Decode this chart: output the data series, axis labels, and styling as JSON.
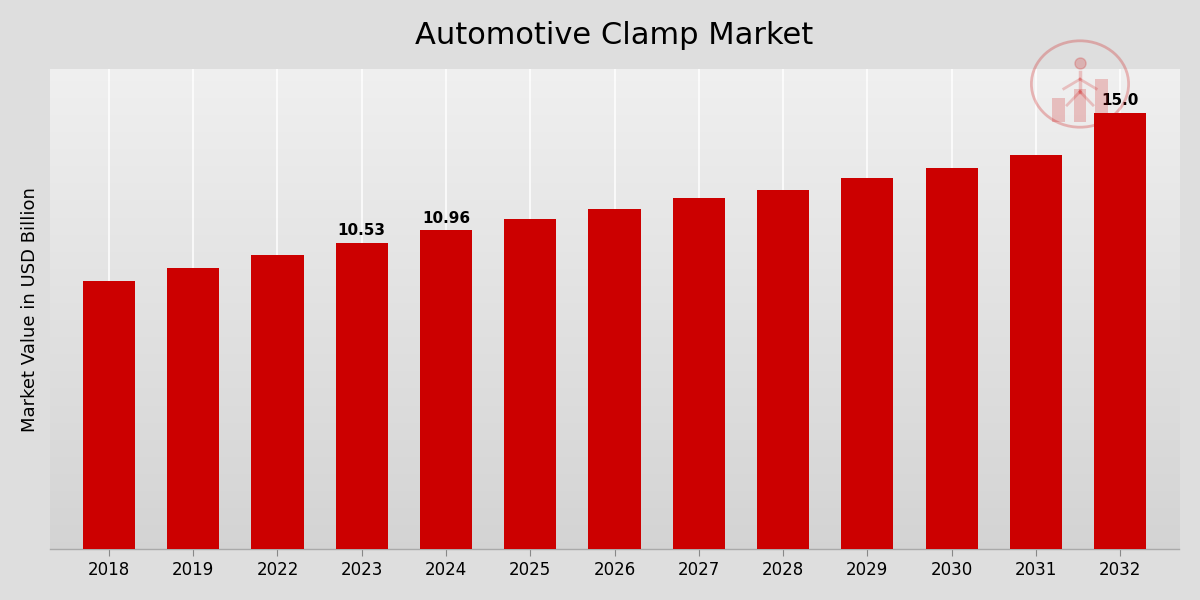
{
  "title": "Automotive Clamp Market",
  "ylabel": "Market Value in USD Billion",
  "categories": [
    "2018",
    "2019",
    "2022",
    "2023",
    "2024",
    "2025",
    "2026",
    "2027",
    "2028",
    "2029",
    "2030",
    "2031",
    "2032"
  ],
  "values": [
    9.2,
    9.65,
    10.1,
    10.53,
    10.96,
    11.35,
    11.7,
    12.05,
    12.35,
    12.75,
    13.1,
    13.55,
    15.0
  ],
  "bar_color": "#CC0000",
  "bar_width": 0.62,
  "labeled_bars": {
    "2023": "10.53",
    "2024": "10.96",
    "2032": "15.0"
  },
  "ylim": [
    0,
    16.5
  ],
  "title_fontsize": 22,
  "label_fontsize": 11,
  "tick_fontsize": 12,
  "grid_color": "#cccccc",
  "bg_top_color": "#f0f0f0",
  "bg_bottom_color": "#c8c8c8"
}
